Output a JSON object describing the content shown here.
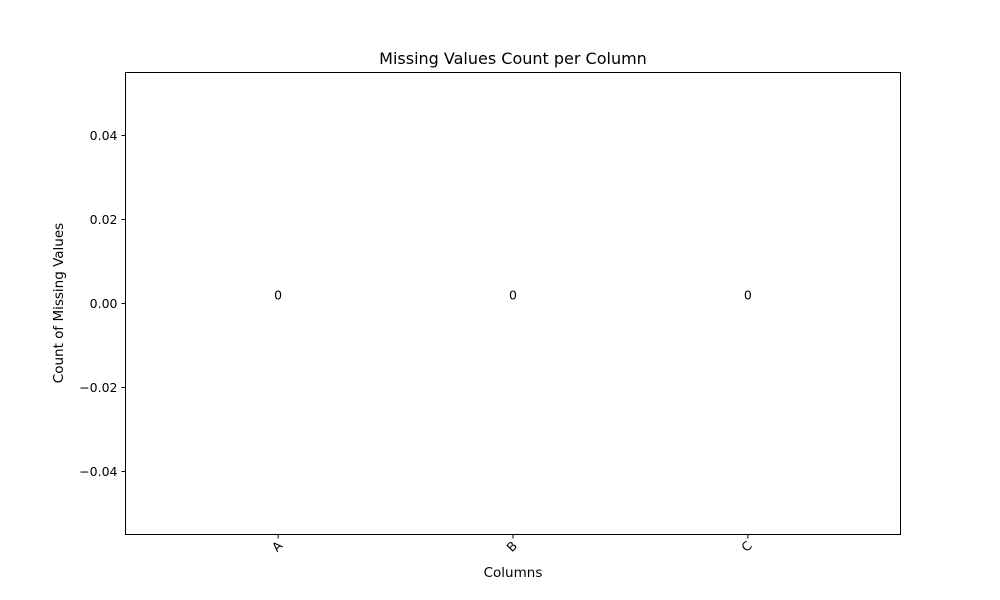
{
  "chart_data": {
    "type": "bar",
    "title": "Missing Values Count per Column",
    "xlabel": "Columns",
    "ylabel": "Count of Missing Values",
    "categories": [
      "A",
      "B",
      "C"
    ],
    "values": [
      0,
      0,
      0
    ],
    "data_labels": [
      "0",
      "0",
      "0"
    ],
    "ylim": [
      -0.055,
      0.055
    ],
    "yticks": [
      -0.04,
      -0.02,
      0.0,
      0.02,
      0.04
    ],
    "ytick_labels": [
      "−0.04",
      "−0.02",
      "0.00",
      "0.02",
      "0.04"
    ],
    "xtick_rotation": 45,
    "grid": false,
    "bar_color": "#1f77b4"
  }
}
